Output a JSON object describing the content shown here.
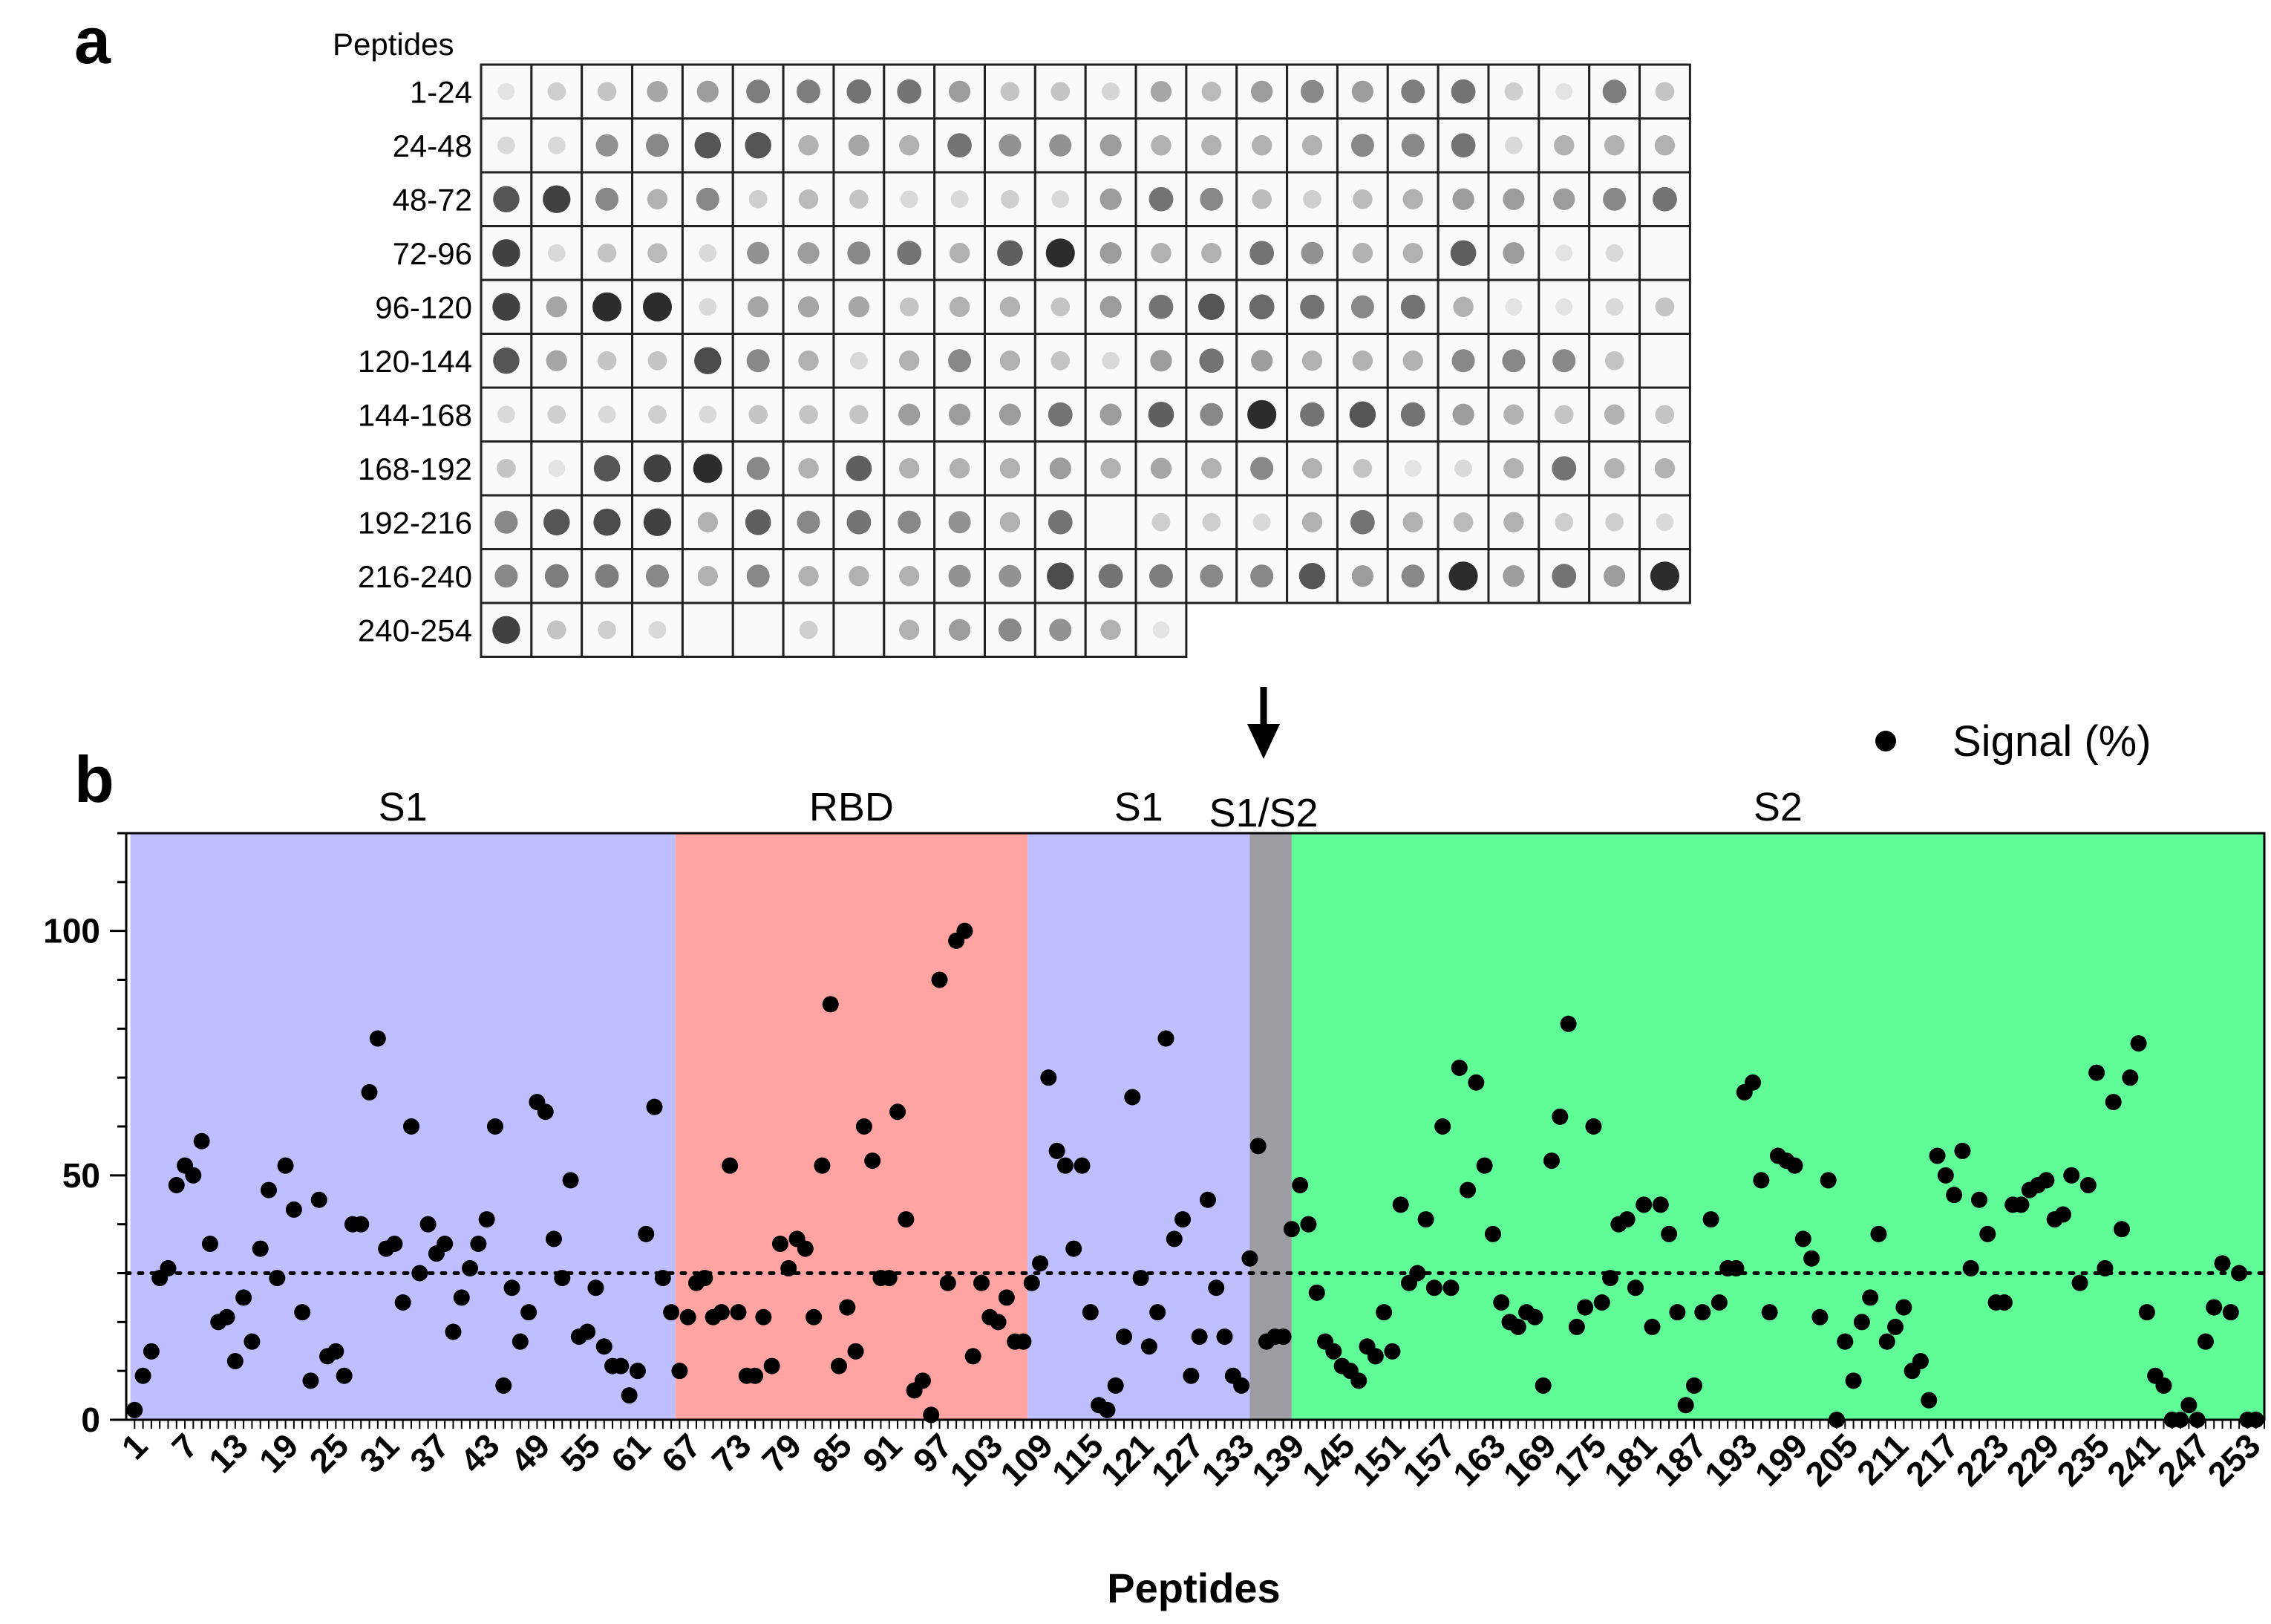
{
  "panel_a": {
    "letter": "a",
    "header": "Peptides",
    "rows": [
      "1-24",
      "24-48",
      "48-72",
      "72-96",
      "96-120",
      "120-144",
      "144-168",
      "168-192",
      "192-216",
      "216-240",
      "240-254"
    ],
    "dot_intensity": [
      [
        0.05,
        0.15,
        0.2,
        0.35,
        0.4,
        0.55,
        0.55,
        0.6,
        0.6,
        0.4,
        0.2,
        0.2,
        0.12,
        0.35,
        0.25,
        0.4,
        0.5,
        0.4,
        0.55,
        0.6,
        0.15,
        0.05,
        0.55,
        0.2
      ],
      [
        0.1,
        0.1,
        0.45,
        0.5,
        0.75,
        0.75,
        0.3,
        0.35,
        0.3,
        0.6,
        0.45,
        0.45,
        0.4,
        0.3,
        0.3,
        0.3,
        0.3,
        0.5,
        0.5,
        0.6,
        0.1,
        0.3,
        0.3,
        0.3
      ],
      [
        0.75,
        0.85,
        0.5,
        0.3,
        0.5,
        0.15,
        0.25,
        0.2,
        0.1,
        0.1,
        0.15,
        0.1,
        0.4,
        0.6,
        0.5,
        0.25,
        0.15,
        0.25,
        0.3,
        0.4,
        0.4,
        0.4,
        0.5,
        0.6
      ],
      [
        0.85,
        0.1,
        0.2,
        0.25,
        0.1,
        0.45,
        0.4,
        0.5,
        0.6,
        0.3,
        0.7,
        0.95,
        0.4,
        0.3,
        0.3,
        0.6,
        0.45,
        0.3,
        0.3,
        0.7,
        0.4,
        0.05,
        0.1,
        0.0
      ],
      [
        0.85,
        0.35,
        0.95,
        0.95,
        0.1,
        0.35,
        0.35,
        0.35,
        0.2,
        0.3,
        0.3,
        0.2,
        0.4,
        0.6,
        0.75,
        0.65,
        0.6,
        0.5,
        0.6,
        0.3,
        0.05,
        0.05,
        0.1,
        0.2
      ],
      [
        0.75,
        0.35,
        0.2,
        0.2,
        0.8,
        0.5,
        0.3,
        0.1,
        0.3,
        0.5,
        0.3,
        0.2,
        0.1,
        0.4,
        0.6,
        0.4,
        0.3,
        0.3,
        0.3,
        0.5,
        0.5,
        0.5,
        0.2,
        0.0
      ],
      [
        0.1,
        0.15,
        0.1,
        0.15,
        0.1,
        0.2,
        0.2,
        0.2,
        0.4,
        0.4,
        0.4,
        0.6,
        0.4,
        0.7,
        0.5,
        0.95,
        0.6,
        0.75,
        0.6,
        0.4,
        0.3,
        0.2,
        0.3,
        0.2
      ],
      [
        0.2,
        0.05,
        0.75,
        0.85,
        0.95,
        0.5,
        0.3,
        0.7,
        0.3,
        0.3,
        0.3,
        0.4,
        0.3,
        0.35,
        0.3,
        0.5,
        0.3,
        0.2,
        0.05,
        0.1,
        0.3,
        0.6,
        0.3,
        0.3
      ],
      [
        0.5,
        0.75,
        0.8,
        0.85,
        0.3,
        0.7,
        0.5,
        0.6,
        0.5,
        0.45,
        0.3,
        0.6,
        0.0,
        0.15,
        0.15,
        0.1,
        0.3,
        0.6,
        0.3,
        0.25,
        0.3,
        0.15,
        0.15,
        0.1
      ],
      [
        0.5,
        0.55,
        0.55,
        0.5,
        0.3,
        0.5,
        0.3,
        0.3,
        0.3,
        0.45,
        0.45,
        0.8,
        0.6,
        0.55,
        0.5,
        0.5,
        0.75,
        0.4,
        0.5,
        0.95,
        0.4,
        0.6,
        0.4,
        0.95
      ],
      [
        0.85,
        0.2,
        0.15,
        0.1,
        0.0,
        0.0,
        0.15,
        0.0,
        0.3,
        0.4,
        0.5,
        0.45,
        0.3,
        0.05
      ]
    ]
  },
  "panel_b": {
    "letter": "b",
    "arrow_label": "S1/S2",
    "legend": {
      "marker": "circle",
      "label": "Signal (%)"
    }
  },
  "colors": {
    "s1": "#bfbfff",
    "rbd": "#ffa3a3",
    "cleavage": "#9e9ca3",
    "s2": "#5ffc98",
    "marker": "#000000"
  },
  "chart_data": {
    "type": "scatter",
    "title": "",
    "xlabel": "Peptides",
    "ylabel": "",
    "xlim": [
      0,
      255
    ],
    "ylim": [
      0,
      120
    ],
    "yticks": [
      0,
      50,
      100
    ],
    "xtick_labels": [
      "1",
      "7",
      "13",
      "19",
      "25",
      "31",
      "37",
      "43",
      "49",
      "55",
      "61",
      "67",
      "73",
      "79",
      "85",
      "91",
      "97",
      "103",
      "109",
      "115",
      "121",
      "127",
      "133",
      "139",
      "145",
      "151",
      "157",
      "163",
      "169",
      "175",
      "181",
      "187",
      "193",
      "199",
      "205",
      "211",
      "217",
      "223",
      "229",
      "235",
      "241",
      "247",
      "253"
    ],
    "threshold": 30,
    "regions": [
      {
        "label": "S1",
        "start": 0.5,
        "end": 65.5,
        "color_key": "s1"
      },
      {
        "label": "RBD",
        "start": 65.5,
        "end": 107.5,
        "color_key": "rbd"
      },
      {
        "label": "S1",
        "start": 107.5,
        "end": 134,
        "color_key": "s1"
      },
      {
        "label": "",
        "start": 134,
        "end": 139,
        "color_key": "cleavage"
      },
      {
        "label": "S2",
        "start": 139,
        "end": 255,
        "color_key": "s2"
      }
    ],
    "series": [
      {
        "name": "Signal (%)",
        "values": [
          2,
          9,
          14,
          29,
          31,
          48,
          52,
          50,
          57,
          36,
          20,
          21,
          12,
          25,
          16,
          35,
          47,
          29,
          52,
          43,
          22,
          8,
          45,
          13,
          14,
          9,
          40,
          40,
          67,
          78,
          35,
          36,
          24,
          60,
          30,
          40,
          34,
          36,
          18,
          25,
          31,
          36,
          41,
          60,
          7,
          27,
          16,
          22,
          65,
          63,
          37,
          29,
          49,
          17,
          18,
          27,
          15,
          11,
          11,
          5,
          10,
          38,
          64,
          29,
          22,
          10,
          21,
          28,
          29,
          21,
          22,
          52,
          22,
          9,
          9,
          21,
          11,
          36,
          31,
          37,
          35,
          21,
          52,
          85,
          11,
          23,
          14,
          60,
          53,
          29,
          29,
          63,
          41,
          6,
          8,
          1,
          90,
          28,
          98,
          100,
          13,
          28,
          21,
          20,
          25,
          16,
          16,
          28,
          32,
          70,
          55,
          52,
          35,
          52,
          22,
          3,
          2,
          7,
          17,
          66,
          29,
          15,
          22,
          78,
          37,
          41,
          9,
          17,
          45,
          27,
          17,
          9,
          7,
          33,
          56,
          16,
          17,
          17,
          39,
          48,
          40,
          26,
          16,
          14,
          11,
          10,
          8,
          15,
          13,
          22,
          14,
          44,
          28,
          30,
          41,
          27,
          60,
          27,
          72,
          47,
          69,
          52,
          38,
          24,
          20,
          19,
          22,
          21,
          7,
          53,
          62,
          81,
          19,
          23,
          60,
          24,
          29,
          40,
          41,
          27,
          44,
          19,
          44,
          38,
          22,
          3,
          7,
          22,
          41,
          24,
          31,
          31,
          67,
          69,
          49,
          22,
          54,
          53,
          52,
          37,
          33,
          21,
          49,
          0,
          16,
          8,
          20,
          25,
          38,
          16,
          19,
          23,
          10,
          12,
          4,
          54,
          50,
          46,
          55,
          31,
          45,
          38,
          24,
          24,
          44,
          44,
          47,
          48,
          49,
          41,
          42,
          50,
          28,
          48,
          71,
          31,
          65,
          39,
          70,
          77,
          22,
          9,
          7,
          0,
          0,
          3,
          0,
          16,
          23,
          32,
          22,
          30,
          0,
          0
        ]
      }
    ]
  }
}
